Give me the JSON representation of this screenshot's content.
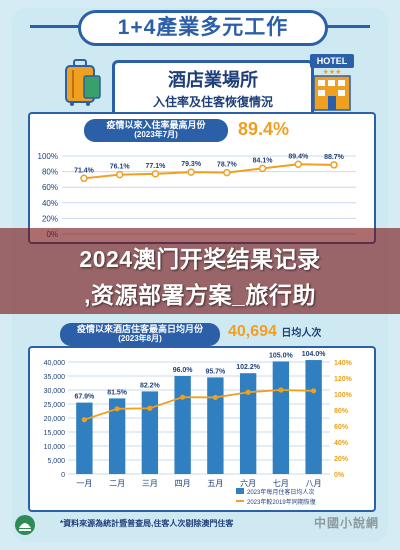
{
  "header": {
    "title": "1+4產業多元工作"
  },
  "section": {
    "title": "酒店業場所",
    "subtitle": "入住率及住客恢復情況"
  },
  "hotel_sign": "HOTEL",
  "stat1": {
    "label_line1": "疫情以來入住率最高月份",
    "label_line2": "(2023年7月)",
    "value": "89.4%"
  },
  "stat2": {
    "label_line1": "疫情以來酒店住客最高日均月份",
    "label_line2": "(2023年8月)",
    "value": "40,694",
    "unit": "日均人次"
  },
  "overlay": {
    "line1": "2024澳门开奖结果记录",
    "line2": ",资源部署方案_旅行助"
  },
  "footer": {
    "note": "*資料來源為統計暨普查局,住客人次剔除澳門住客",
    "watermark": "中國小說網"
  },
  "colors": {
    "primary": "#2b5fa8",
    "accent": "#f0a020",
    "bar": "#2f7fc1",
    "background": "#cfe9f3"
  },
  "chart_data": [
    {
      "type": "line",
      "x": [
        1,
        2,
        3,
        4,
        5,
        6,
        7,
        8
      ],
      "values": [
        71.4,
        76.1,
        77.1,
        79.3,
        78.7,
        84.1,
        89.4,
        88.7
      ],
      "data_labels": [
        "71.4%",
        "76.1%",
        "77.1%",
        "79.3%",
        "78.7%",
        "84.1%",
        "89.4%",
        "88.7%"
      ],
      "ylim": [
        0,
        100
      ],
      "yticks": [
        "0%",
        "20%",
        "40%",
        "60%",
        "80%",
        "100%"
      ],
      "ytick_values": [
        0,
        20,
        40,
        60,
        80,
        100
      ],
      "grid": true
    },
    {
      "type": "bar",
      "categories": [
        "一月",
        "二月",
        "三月",
        "四月",
        "五月",
        "六月",
        "七月",
        "八月"
      ],
      "series": [
        {
          "values": [
            25500,
            27000,
            29500,
            35000,
            34500,
            36000,
            40200,
            40694
          ]
        },
        {
          "values": [
            67.9,
            81.5,
            82.2,
            96.0,
            95.7,
            102.2,
            105.0,
            104.0
          ],
          "data_labels": [
            "67.9%",
            "81.5%",
            "82.2%",
            "96.0%",
            "95.7%",
            "102.2%",
            "105.0%",
            "104.0%"
          ]
        }
      ],
      "ylim_left": [
        0,
        40000
      ],
      "yticks_left": [
        "0",
        "5,000",
        "10,000",
        "15,000",
        "20,000",
        "25,000",
        "30,000",
        "35,000",
        "40,000"
      ],
      "ytick_values_left": [
        0,
        5000,
        10000,
        15000,
        20000,
        25000,
        30000,
        35000,
        40000
      ],
      "ylim_right": [
        0,
        140
      ],
      "yticks_right": [
        "0%",
        "20%",
        "40%",
        "60%",
        "80%",
        "100%",
        "120%",
        "140%"
      ],
      "ytick_values_right": [
        0,
        20,
        40,
        60,
        80,
        100,
        120,
        140
      ],
      "legend": [
        "2023年每月住客日均人次",
        "2023年較2019年同期恢復"
      ],
      "legend_placement": "bottom-right",
      "grid": true
    }
  ]
}
